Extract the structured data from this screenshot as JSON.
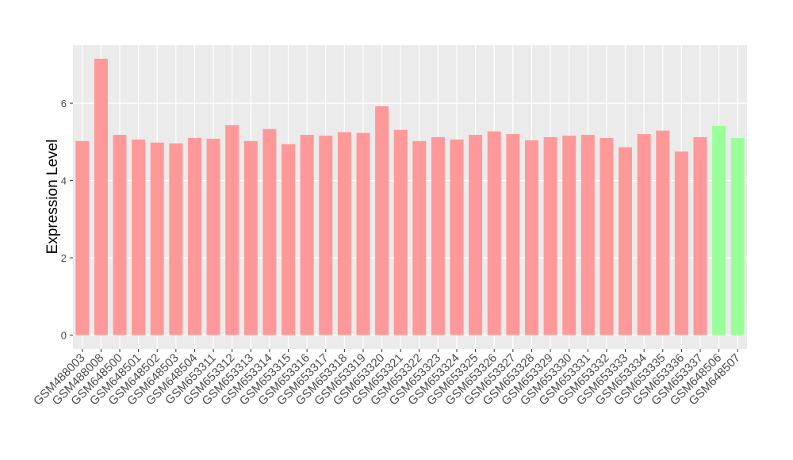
{
  "chart_data": {
    "type": "bar",
    "y_label": "Expression Level",
    "categories": [
      "GSM488003",
      "GSM488008",
      "GSM648500",
      "GSM648501",
      "GSM648502",
      "GSM648503",
      "GSM648504",
      "GSM653311",
      "GSM653312",
      "GSM653313",
      "GSM653314",
      "GSM653315",
      "GSM653316",
      "GSM653317",
      "GSM653318",
      "GSM653319",
      "GSM653320",
      "GSM653321",
      "GSM653322",
      "GSM653323",
      "GSM653324",
      "GSM653325",
      "GSM653326",
      "GSM653327",
      "GSM653328",
      "GSM653329",
      "GSM653330",
      "GSM653331",
      "GSM653332",
      "GSM653333",
      "GSM653334",
      "GSM653335",
      "GSM653336",
      "GSM653337",
      "GSM648506",
      "GSM648507"
    ],
    "values": [
      5.02,
      7.15,
      5.18,
      5.06,
      4.98,
      4.96,
      5.1,
      5.08,
      5.43,
      5.02,
      5.33,
      4.94,
      5.18,
      5.16,
      5.25,
      5.23,
      5.92,
      5.31,
      5.02,
      5.12,
      5.06,
      5.18,
      5.27,
      5.2,
      5.04,
      5.12,
      5.16,
      5.18,
      5.1,
      4.86,
      5.2,
      5.29,
      4.75,
      5.12,
      5.41,
      5.1
    ],
    "colors": [
      "#ff9999",
      "#ff9999",
      "#ff9999",
      "#ff9999",
      "#ff9999",
      "#ff9999",
      "#ff9999",
      "#ff9999",
      "#ff9999",
      "#ff9999",
      "#ff9999",
      "#ff9999",
      "#ff9999",
      "#ff9999",
      "#ff9999",
      "#ff9999",
      "#ff9999",
      "#ff9999",
      "#ff9999",
      "#ff9999",
      "#ff9999",
      "#ff9999",
      "#ff9999",
      "#ff9999",
      "#ff9999",
      "#ff9999",
      "#ff9999",
      "#ff9999",
      "#ff9999",
      "#ff9999",
      "#ff9999",
      "#ff9999",
      "#ff9999",
      "#ff9999",
      "#99ff99",
      "#99ff99"
    ],
    "ylim": [
      -0.36,
      7.5
    ],
    "yticks": [
      0,
      2,
      4,
      6
    ],
    "grid": true
  }
}
